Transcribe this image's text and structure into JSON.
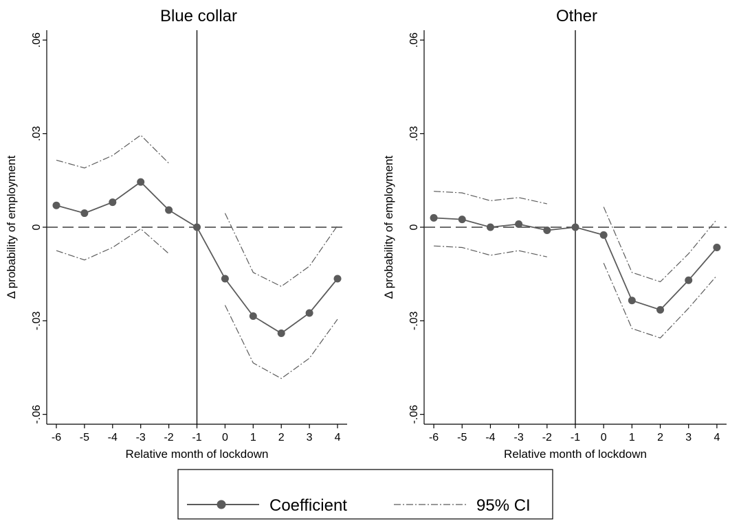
{
  "chart_data": [
    {
      "type": "line",
      "title": "Blue collar",
      "xlabel": "Relative month of lockdown",
      "ylabel": "Δ probability of employment",
      "xlim": [
        -6,
        4
      ],
      "ylim": [
        -0.06,
        0.06
      ],
      "x_ticks": [
        "-6",
        "-5",
        "-4",
        "-3",
        "-2",
        "-1",
        "0",
        "1",
        "2",
        "3",
        "4"
      ],
      "y_ticks": [
        "-.06",
        "-.03",
        "0",
        ".03",
        ".06"
      ],
      "reference_lines": {
        "horizontal": 0,
        "vertical": -1
      },
      "series": [
        {
          "name": "Coefficient",
          "x": [
            -6,
            -5,
            -4,
            -3,
            -2,
            -1,
            0,
            1,
            2,
            3,
            4
          ],
          "y": [
            0.007,
            0.0045,
            0.008,
            0.0145,
            0.0055,
            0,
            -0.0165,
            -0.0285,
            -0.034,
            -0.0275,
            -0.0165
          ]
        },
        {
          "name": "95% CI",
          "segments": [
            {
              "x": [
                -6,
                -5,
                -4,
                -3,
                -2
              ],
              "upper": [
                0.0215,
                0.019,
                0.023,
                0.0295,
                0.0205
              ],
              "lower": [
                -0.0075,
                -0.0105,
                -0.0065,
                -0.0005,
                -0.0085
              ]
            },
            {
              "x": [
                0,
                1,
                2,
                3,
                4
              ],
              "upper": [
                0.0045,
                -0.0145,
                -0.019,
                -0.0125,
                0.0005
              ],
              "lower": [
                -0.025,
                -0.0435,
                -0.0485,
                -0.042,
                -0.0295
              ]
            }
          ]
        }
      ]
    },
    {
      "type": "line",
      "title": "Other",
      "xlabel": "Relative month of lockdown",
      "ylabel": "Δ probability of employment",
      "xlim": [
        -6,
        4
      ],
      "ylim": [
        -0.06,
        0.06
      ],
      "x_ticks": [
        "-6",
        "-5",
        "-4",
        "-3",
        "-2",
        "-1",
        "0",
        "1",
        "2",
        "3",
        "4"
      ],
      "y_ticks": [
        "-.06",
        "-.03",
        "0",
        ".03",
        ".06"
      ],
      "reference_lines": {
        "horizontal": 0,
        "vertical": -1
      },
      "series": [
        {
          "name": "Coefficient",
          "x": [
            -6,
            -5,
            -4,
            -3,
            -2,
            -1,
            0,
            1,
            2,
            3,
            4
          ],
          "y": [
            0.003,
            0.0025,
            0,
            0.001,
            -0.001,
            0,
            -0.0025,
            -0.0235,
            -0.0265,
            -0.017,
            -0.0065
          ]
        },
        {
          "name": "95% CI",
          "segments": [
            {
              "x": [
                -6,
                -5,
                -4,
                -3,
                -2
              ],
              "upper": [
                0.0115,
                0.011,
                0.0085,
                0.0095,
                0.0075
              ],
              "lower": [
                -0.006,
                -0.0065,
                -0.009,
                -0.0075,
                -0.0095
              ]
            },
            {
              "x": [
                0,
                1,
                2,
                3,
                4
              ],
              "upper": [
                0.0065,
                -0.0145,
                -0.0175,
                -0.0085,
                0.0025
              ],
              "lower": [
                -0.0115,
                -0.0325,
                -0.0355,
                -0.026,
                -0.0155
              ]
            }
          ]
        }
      ]
    }
  ],
  "legend": {
    "items": [
      {
        "label": "Coefficient",
        "style": "solid-with-marker"
      },
      {
        "label": "95% CI",
        "style": "dash-dot"
      }
    ]
  },
  "colors": {
    "coefficient": "#5b5b5b",
    "ci": "#5b5b5b",
    "axes": "#000000",
    "zero_line": "#3a3a3a"
  }
}
